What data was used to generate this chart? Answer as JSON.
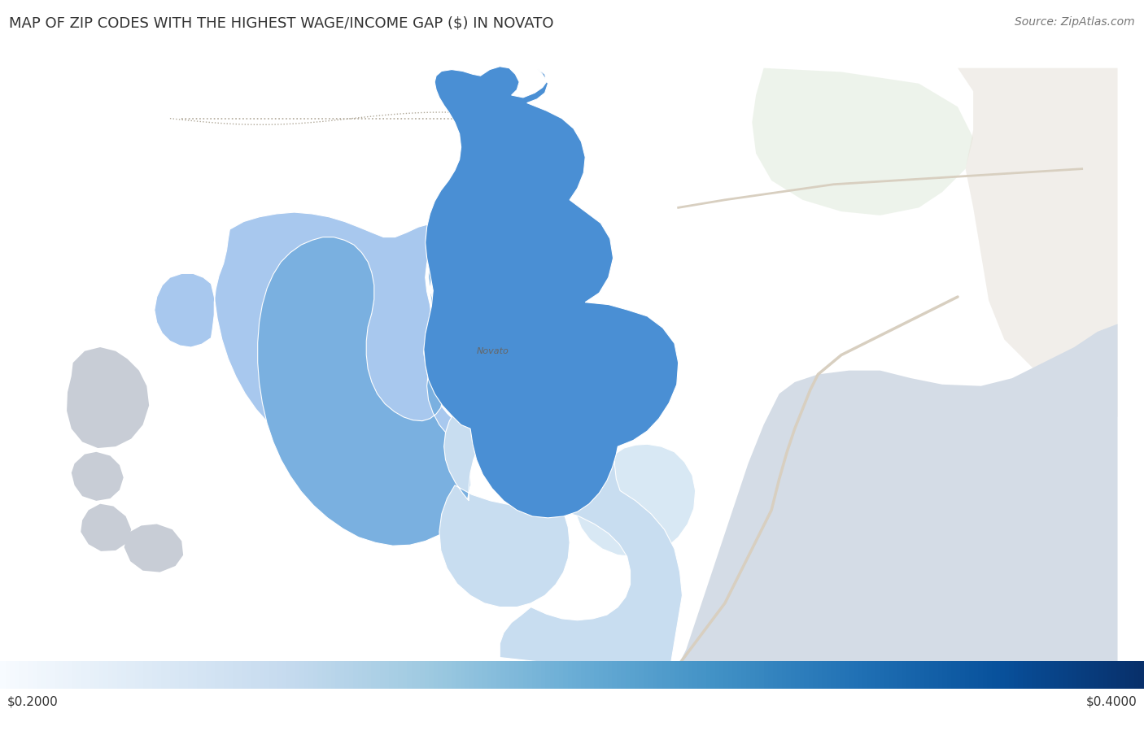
{
  "title": "MAP OF ZIP CODES WITH THE HIGHEST WAGE/INCOME GAP ($) IN NOVATO",
  "source": "Source: ZipAtlas.com",
  "colorbar_min": 0.2,
  "colorbar_max": 0.4,
  "colorbar_label_left": "$0.2000",
  "colorbar_label_right": "$0.4000",
  "novato_label": "Novato",
  "background_color": "#f5f3ef",
  "road_color": "#e8e0d0",
  "water_color": "#d0d8e0",
  "title_fontsize": 13,
  "source_fontsize": 10,
  "zone1_color": "#4a8fd4",
  "zone2_color": "#a8c8ee",
  "zone3_color": "#7ab0e0",
  "zone4_color": "#c8ddf0",
  "zone4b_color": "#d8e8f4",
  "gray_feature_color": "#c8cdd4"
}
